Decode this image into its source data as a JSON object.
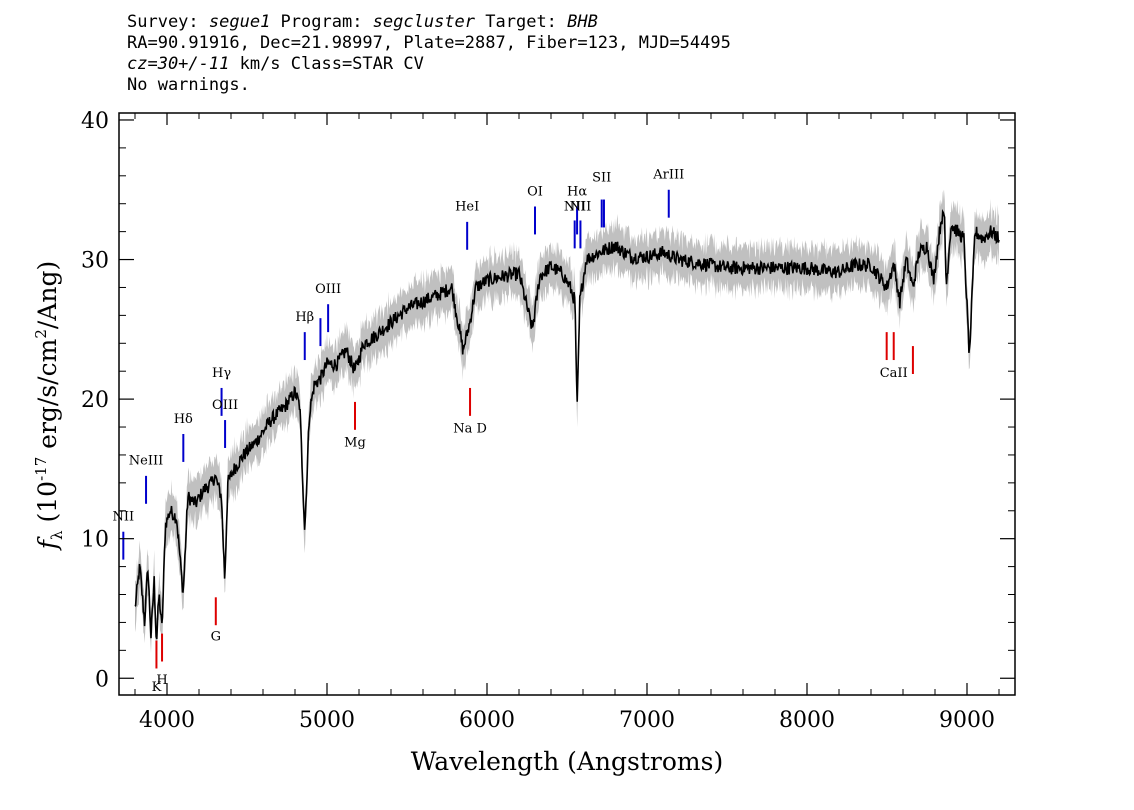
{
  "header": {
    "survey_prefix": "Survey: ",
    "survey": "segue1",
    "program_prefix": " Program: ",
    "program": "segcluster",
    "target_prefix": " Target: ",
    "target": "BHB",
    "line2": "RA=90.91916, Dec=21.98997, Plate=2887, Fiber=123, MJD=54495",
    "cz_value": "cz=30+/-11",
    "cz_rest": " km/s Class=STAR CV",
    "line4": "No warnings."
  },
  "chart_data": {
    "type": "line",
    "title": "",
    "xlabel": "Wavelength (Angstroms)",
    "ylabel_prefix": "f",
    "ylabel_sub": "λ",
    "ylabel_mid": " (10",
    "ylabel_exp": "-17",
    "ylabel_unit": " erg/s/cm",
    "ylabel_exp2": "2",
    "ylabel_end": "/Ang)",
    "xlim": [
      3700,
      9300
    ],
    "ylim": [
      -1.2,
      40.5
    ],
    "x_ticks": [
      4000,
      5000,
      6000,
      7000,
      8000,
      9000
    ],
    "x_tick_labels": [
      "4000",
      "5000",
      "6000",
      "7000",
      "8000",
      "9000"
    ],
    "y_ticks": [
      0,
      10,
      20,
      30,
      40
    ],
    "y_tick_labels": [
      "0",
      "10",
      "20",
      "30",
      "40"
    ],
    "grid": false,
    "colors": {
      "flux": "#000000",
      "error_band": "#c0c0c0",
      "emission": "#0000cc",
      "absorption": "#dd0000"
    },
    "series": [
      {
        "role": "flux",
        "x": [
          3800,
          3830,
          3860,
          3880,
          3900,
          3920,
          3934,
          3950,
          3969,
          3990,
          4020,
          4060,
          4101,
          4130,
          4180,
          4230,
          4280,
          4300,
          4340,
          4361,
          4380,
          4420,
          4480,
          4560,
          4650,
          4740,
          4800,
          4830,
          4861,
          4890,
          4920,
          4960,
          5000,
          5060,
          5120,
          5175,
          5230,
          5300,
          5400,
          5500,
          5600,
          5700,
          5780,
          5850,
          5893,
          5930,
          6000,
          6100,
          6200,
          6284,
          6330,
          6400,
          6470,
          6520,
          6550,
          6563,
          6580,
          6620,
          6700,
          6800,
          6900,
          7000,
          7100,
          7200,
          7300,
          7400,
          7500,
          7600,
          7700,
          7800,
          7900,
          8000,
          8100,
          8200,
          8300,
          8400,
          8498,
          8542,
          8580,
          8620,
          8662,
          8700,
          8750,
          8790,
          8840,
          8860,
          8870,
          8900,
          8940,
          8980,
          9015,
          9050,
          9100,
          9150,
          9200
        ],
        "y": [
          5,
          8,
          4,
          8,
          3,
          7,
          2.5,
          6,
          3.5,
          11,
          12,
          11.5,
          6,
          13,
          12.5,
          13.5,
          14,
          14.5,
          13,
          7,
          14,
          15,
          16,
          17,
          18.5,
          19.5,
          20.5,
          19.5,
          10.5,
          19,
          21,
          21.5,
          22.5,
          22.5,
          23.5,
          22,
          24,
          24.5,
          25.5,
          26.5,
          27,
          27.5,
          28,
          23.5,
          25.5,
          28,
          28.5,
          28.8,
          29,
          25,
          28.8,
          29.5,
          29,
          28,
          27,
          19,
          27,
          30,
          30.5,
          31,
          30.2,
          30.2,
          30.5,
          30,
          29.8,
          29.6,
          29.4,
          29.4,
          29.4,
          29.4,
          29.4,
          29.4,
          29.2,
          29.1,
          29.6,
          29.6,
          28,
          29.7,
          27,
          30,
          28,
          30.5,
          31,
          28.5,
          33,
          33,
          28,
          32.5,
          32,
          31.5,
          23,
          32,
          31.5,
          32,
          31.5
        ],
        "noise_amp": 0.5
      }
    ],
    "error_band_halfwidth": 1.0,
    "line_markers": [
      {
        "label": "NII",
        "x": 3727,
        "y1": 8.5,
        "y2": 10.5,
        "color": "emission",
        "label_y": 11.3
      },
      {
        "label": "NeIII",
        "x": 3869,
        "y1": 12.5,
        "y2": 14.5,
        "color": "emission",
        "label_y": 15.3
      },
      {
        "label": "Hδ",
        "x": 4102,
        "y1": 15.5,
        "y2": 17.5,
        "color": "emission",
        "label_y": 18.3
      },
      {
        "label": "Hγ",
        "x": 4341,
        "y1": 18.8,
        "y2": 20.8,
        "color": "emission",
        "label_y": 21.6
      },
      {
        "label": "OIII",
        "x": 4363,
        "y1": 16.5,
        "y2": 18.5,
        "color": "emission",
        "label_y": 19.3
      },
      {
        "label": "Hβ",
        "x": 4861,
        "y1": 22.8,
        "y2": 24.8,
        "color": "emission",
        "label_y": 25.6
      },
      {
        "label": "",
        "x": 4959,
        "y1": 23.8,
        "y2": 25.8,
        "color": "emission",
        "label_y": 0
      },
      {
        "label": "OIII",
        "x": 5007,
        "y1": 24.8,
        "y2": 26.8,
        "color": "emission",
        "label_y": 27.6
      },
      {
        "label": "HeI",
        "x": 5876,
        "y1": 30.7,
        "y2": 32.7,
        "color": "emission",
        "label_y": 33.5
      },
      {
        "label": "OI",
        "x": 6300,
        "y1": 31.8,
        "y2": 33.8,
        "color": "emission",
        "label_y": 34.6
      },
      {
        "label": "NII",
        "x": 6548,
        "y1": 30.8,
        "y2": 32.8,
        "color": "emission",
        "label_y": 33.5
      },
      {
        "label": "Hα",
        "x": 6563,
        "y1": 31.8,
        "y2": 33.8,
        "color": "emission",
        "label_y": 34.6
      },
      {
        "label": "NII",
        "x": 6584,
        "y1": 30.8,
        "y2": 32.8,
        "color": "emission",
        "label_y": 33.5
      },
      {
        "label": "SII",
        "x": 6717,
        "y1": 32.3,
        "y2": 34.3,
        "color": "emission",
        "label_y": 35.6
      },
      {
        "label": "",
        "x": 6731,
        "y1": 32.3,
        "y2": 34.3,
        "color": "emission",
        "label_y": 0
      },
      {
        "label": "ArIII",
        "x": 7136,
        "y1": 33.0,
        "y2": 35.0,
        "color": "emission",
        "label_y": 35.8
      },
      {
        "label": "K",
        "x": 3934,
        "y1": 0.7,
        "y2": 2.7,
        "color": "absorption",
        "label_y": -0.9
      },
      {
        "label": "H",
        "x": 3969,
        "y1": 1.2,
        "y2": 3.2,
        "color": "absorption",
        "label_y": -0.4
      },
      {
        "label": "G",
        "x": 4305,
        "y1": 3.8,
        "y2": 5.8,
        "color": "absorption",
        "label_y": 2.7
      },
      {
        "label": "Mg",
        "x": 5175,
        "y1": 17.8,
        "y2": 19.8,
        "color": "absorption",
        "label_y": 16.6
      },
      {
        "label": "Na D",
        "x": 5894,
        "y1": 18.8,
        "y2": 20.8,
        "color": "absorption",
        "label_y": 17.6
      },
      {
        "label": "",
        "x": 8498,
        "y1": 22.8,
        "y2": 24.8,
        "color": "absorption",
        "label_y": 0
      },
      {
        "label": "CaII",
        "x": 8542,
        "y1": 22.8,
        "y2": 24.8,
        "color": "absorption",
        "label_y": 21.6
      },
      {
        "label": "",
        "x": 8662,
        "y1": 21.8,
        "y2": 23.8,
        "color": "absorption",
        "label_y": 0
      }
    ]
  }
}
